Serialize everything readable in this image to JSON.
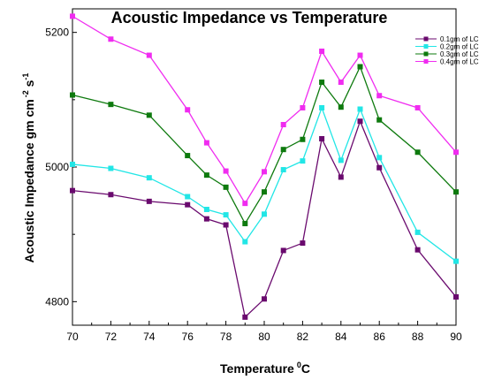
{
  "chart_data": {
    "type": "line",
    "title": "Acoustic Impedance vs Temperature",
    "xlabel": "Temperature",
    "xlabel_sup": "0",
    "xlabel_unit": "C",
    "ylabel": "Acoustic Impedance gm cm",
    "ylabel_sup1": "-2",
    "ylabel_mid": " s",
    "ylabel_sup2": "-1",
    "xlim": [
      70,
      90
    ],
    "ylim": [
      4765,
      5235
    ],
    "xticks": [
      70,
      72,
      74,
      76,
      78,
      80,
      82,
      84,
      86,
      88,
      90
    ],
    "yticks": [
      4800,
      5000,
      5200
    ],
    "x": [
      70,
      72,
      74,
      76,
      77,
      78,
      79,
      80,
      81,
      82,
      83,
      84,
      85,
      86,
      88,
      90
    ],
    "legend_position": "top-right",
    "series": [
      {
        "name": "0.1gm of LC",
        "color": "#6a0a6e",
        "values": [
          4965,
          4959,
          4949,
          4944,
          4923,
          4914,
          4777,
          4804,
          4876,
          4887,
          5042,
          4985,
          5068,
          4999,
          4877,
          4807
        ]
      },
      {
        "name": "0.2gm of LC",
        "color": "#22e6e6",
        "values": [
          5004,
          4998,
          4984,
          4956,
          4937,
          4929,
          4889,
          4930,
          4996,
          5009,
          5088,
          5010,
          5086,
          5014,
          4903,
          4860
        ]
      },
      {
        "name": "0.3gm of LC",
        "color": "#0e7a0e",
        "values": [
          5107,
          5093,
          5077,
          5017,
          4988,
          4970,
          4916,
          4963,
          5026,
          5041,
          5126,
          5089,
          5149,
          5070,
          5022,
          4963
        ]
      },
      {
        "name": "0.4gm of LC",
        "color": "#f02cf0",
        "values": [
          5224,
          5190,
          5166,
          5085,
          5036,
          4994,
          4946,
          4993,
          5063,
          5088,
          5172,
          5126,
          5166,
          5106,
          5088,
          5022
        ]
      }
    ]
  }
}
